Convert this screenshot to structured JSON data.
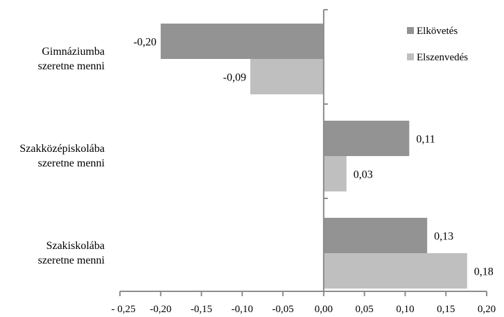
{
  "chart_data": {
    "type": "bar",
    "orientation": "horizontal",
    "categories": [
      [
        "Gimnáziumba",
        "szeretne menni"
      ],
      [
        "Szakközépiskolába",
        "szeretne menni"
      ],
      [
        "Szakiskolába",
        "szeretne menni"
      ]
    ],
    "series": [
      {
        "name": "Elkövetés",
        "color": "#939393",
        "values": [
          -0.2,
          0.105,
          0.127
        ],
        "labels": [
          "-0,20",
          "0,11",
          "0,13"
        ]
      },
      {
        "name": "Elszenvedés",
        "color": "#bfbfbf",
        "values": [
          -0.09,
          0.028,
          0.176
        ],
        "labels": [
          "-0,09",
          "0,03",
          "0,18"
        ]
      }
    ],
    "xlim": [
      -0.25,
      0.2
    ],
    "x_ticks": [
      -0.25,
      -0.2,
      -0.15,
      -0.1,
      -0.05,
      0.0,
      0.05,
      0.1,
      0.15,
      0.2
    ],
    "x_tick_labels": [
      "- 0,25",
      "-0,20",
      "-0,15",
      "-0,10",
      "-0,05",
      "0,00",
      "0,05",
      "0,10",
      "0,15",
      "0,20"
    ],
    "title": "",
    "xlabel": "",
    "ylabel": "",
    "grid": false,
    "legend_position": "top-right"
  }
}
